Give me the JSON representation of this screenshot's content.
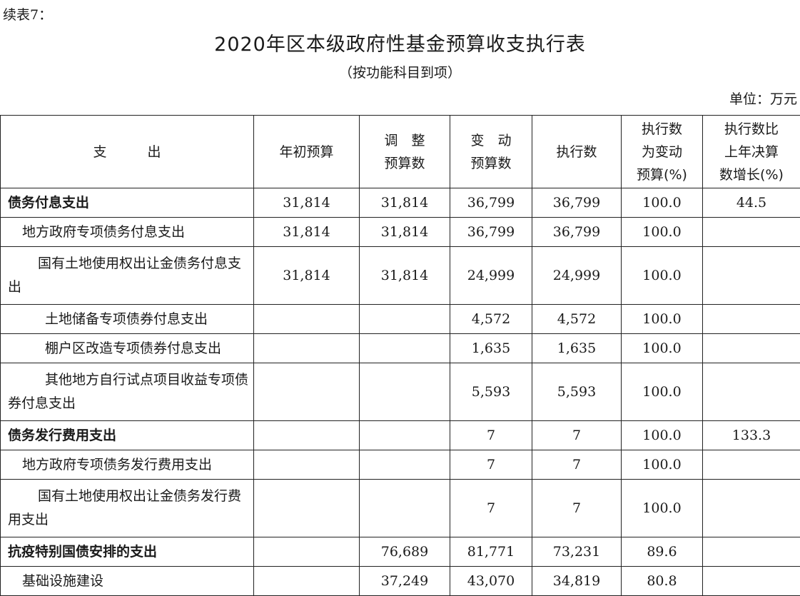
{
  "continued_label": "续表7：",
  "title": "2020年区本级政府性基金预算收支执行表",
  "subtitle": "（按功能科目到项）",
  "unit": "单位：万元",
  "headers": {
    "item": "支　　　出",
    "initial_budget": "年初预算",
    "adjusted_budget": [
      "调　整",
      "预算数"
    ],
    "changed_budget": [
      "变　动",
      "预算数"
    ],
    "executed": "执行数",
    "exec_ratio": [
      "执行数",
      "为变动",
      "预算(%)"
    ],
    "yoy_growth": [
      "执行数比",
      "上年决算",
      "数增长(%)"
    ]
  },
  "rows": [
    {
      "name": "债务付息支出",
      "initial": "31,814",
      "adjusted": "31,814",
      "changed": "36,799",
      "executed": "36,799",
      "ratio": "100.0",
      "growth": "44.5"
    },
    {
      "name": "地方政府专项债务付息支出",
      "initial": "31,814",
      "adjusted": "31,814",
      "changed": "36,799",
      "executed": "36,799",
      "ratio": "100.0",
      "growth": ""
    },
    {
      "name": "国有土地使用权出让金债务付息支出",
      "initial": "31,814",
      "adjusted": "31,814",
      "changed": "24,999",
      "executed": "24,999",
      "ratio": "100.0",
      "growth": ""
    },
    {
      "name": "土地储备专项债券付息支出",
      "initial": "",
      "adjusted": "",
      "changed": "4,572",
      "executed": "4,572",
      "ratio": "100.0",
      "growth": ""
    },
    {
      "name": "棚户区改造专项债券付息支出",
      "initial": "",
      "adjusted": "",
      "changed": "1,635",
      "executed": "1,635",
      "ratio": "100.0",
      "growth": ""
    },
    {
      "name": "其他地方自行试点项目收益专项债券付息支出",
      "initial": "",
      "adjusted": "",
      "changed": "5,593",
      "executed": "5,593",
      "ratio": "100.0",
      "growth": ""
    },
    {
      "name": "债务发行费用支出",
      "initial": "",
      "adjusted": "",
      "changed": "7",
      "executed": "7",
      "ratio": "100.0",
      "growth": "133.3"
    },
    {
      "name": "地方政府专项债务发行费用支出",
      "initial": "",
      "adjusted": "",
      "changed": "7",
      "executed": "7",
      "ratio": "100.0",
      "growth": ""
    },
    {
      "name": "国有土地使用权出让金债务发行费用支出",
      "initial": "",
      "adjusted": "",
      "changed": "7",
      "executed": "7",
      "ratio": "100.0",
      "growth": ""
    },
    {
      "name": "抗疫特别国债安排的支出",
      "initial": "",
      "adjusted": "76,689",
      "changed": "81,771",
      "executed": "73,231",
      "ratio": "89.6",
      "growth": ""
    },
    {
      "name": "基础设施建设",
      "initial": "",
      "adjusted": "37,249",
      "changed": "43,070",
      "executed": "34,819",
      "ratio": "80.8",
      "growth": ""
    }
  ]
}
